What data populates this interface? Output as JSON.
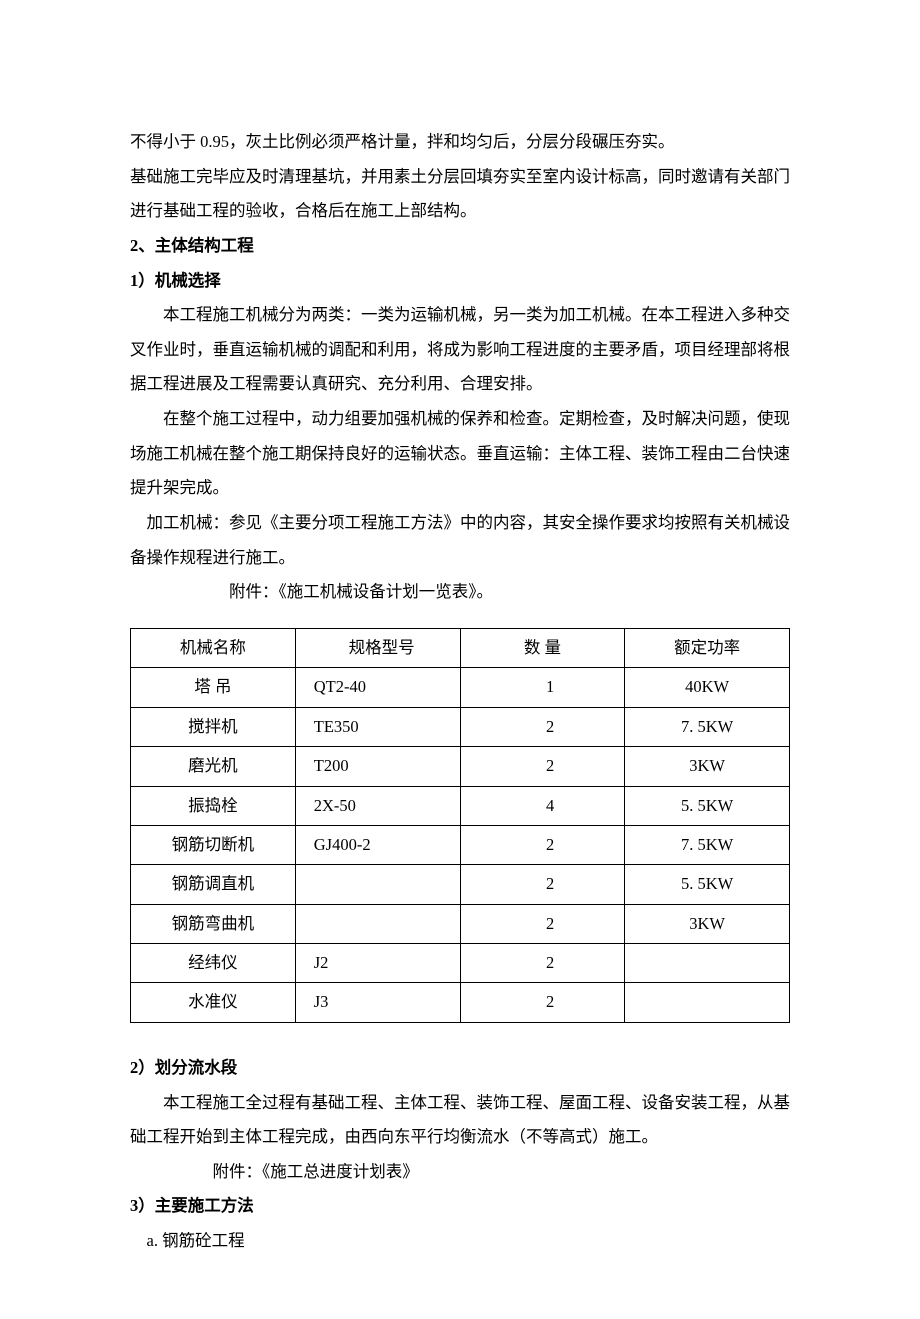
{
  "p1": "不得小于 0.95，灰土比例必须严格计量，拌和均匀后，分层分段碾压夯实。",
  "p2": "基础施工完毕应及时清理基坑，并用素土分层回填夯实至室内设计标高，同时邀请有关部门进行基础工程的验收，合格后在施工上部结构。",
  "h2": "2、主体结构工程",
  "h2_1": "1）机械选择",
  "p3": "本工程施工机械分为两类：一类为运输机械，另一类为加工机械。在本工程进入多种交叉作业时，垂直运输机械的调配和利用，将成为影响工程进度的主要矛盾，项目经理部将根据工程进展及工程需要认真研究、充分利用、合理安排。",
  "p4": "在整个施工过程中，动力组要加强机械的保养和检查。定期检查，及时解决问题，使现场施工机械在整个施工期保持良好的运输状态。垂直运输：主体工程、装饰工程由二台快速提升架完成。",
  "p5": "加工机械：参见《主要分项工程施工方法》中的内容，其安全操作要求均按照有关机械设备操作规程进行施工。",
  "attach1": "附件：《施工机械设备计划一览表》。",
  "table": {
    "headers": [
      "机械名称",
      "规格型号",
      "数  量",
      "额定功率"
    ],
    "rows": [
      {
        "name": "塔      吊",
        "model": "QT2-40",
        "qty": "1",
        "power": "40KW"
      },
      {
        "name": "搅拌机",
        "model": "TE350",
        "qty": "2",
        "power": "7. 5KW"
      },
      {
        "name": "磨光机",
        "model": "T200",
        "qty": "2",
        "power": "3KW"
      },
      {
        "name": "振捣栓",
        "model": "2X-50",
        "qty": "4",
        "power": "5. 5KW"
      },
      {
        "name": "钢筋切断机",
        "model": "GJ400-2",
        "qty": "2",
        "power": "7. 5KW"
      },
      {
        "name": "钢筋调直机",
        "model": "",
        "qty": "2",
        "power": "5. 5KW"
      },
      {
        "name": "钢筋弯曲机",
        "model": "",
        "qty": "2",
        "power": "3KW"
      },
      {
        "name": "经纬仪",
        "model": "J2",
        "qty": "2",
        "power": ""
      },
      {
        "name": "水准仪",
        "model": "J3",
        "qty": "2",
        "power": ""
      }
    ]
  },
  "h2_2": "2）划分流水段",
  "p6": "本工程施工全过程有基础工程、主体工程、装饰工程、屋面工程、设备安装工程，从基础工程开始到主体工程完成，由西向东平行均衡流水（不等高式）施工。",
  "attach2": "附件：《施工总进度计划表》",
  "h2_3": "3）主要施工方法",
  "p7": "a.  钢筋砼工程"
}
